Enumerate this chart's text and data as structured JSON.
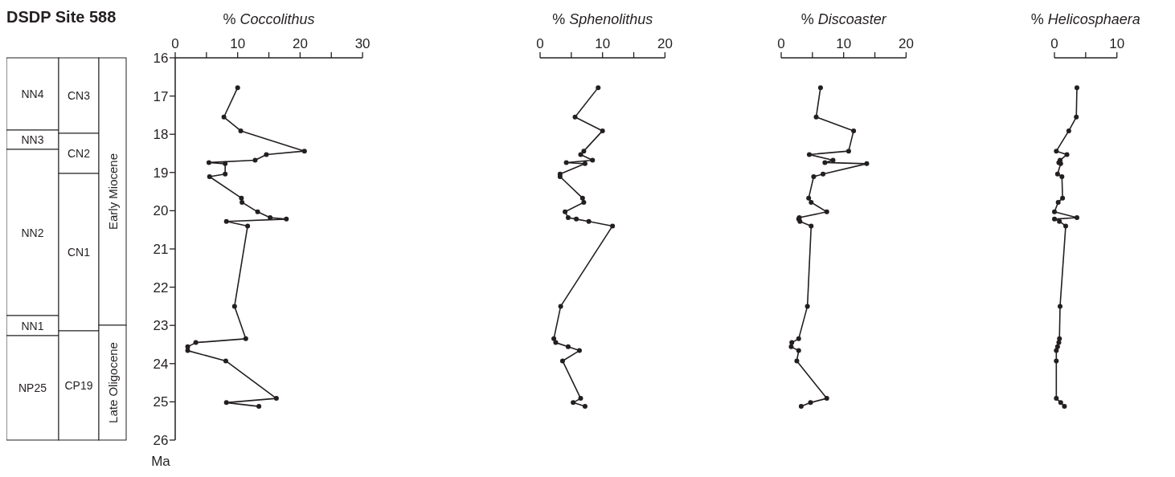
{
  "chart_data": [
    {
      "type": "other",
      "title": "DSDP Site 588",
      "annotations": [
        "NN4",
        "NN3",
        "NN2",
        "NN1",
        "NP25",
        "CN3",
        "CN2",
        "CN1",
        "CP19",
        "Early Miocene",
        "Late Oligocene"
      ]
    },
    {
      "type": "line",
      "xlabel": "% Coccolithus",
      "ylabel": "Ma",
      "xlim": [
        0,
        30
      ],
      "xticks": [
        0,
        {
          "value": 5,
          "label": null
        },
        10,
        {
          "value": 15,
          "label": null
        },
        20,
        {
          "value": 25,
          "label": null
        },
        30
      ],
      "ylim": [
        26,
        16
      ],
      "yticks": [
        16,
        17,
        18,
        19,
        20,
        21,
        22,
        23,
        24,
        25,
        26
      ],
      "marker": "circle",
      "line_style": "solid",
      "series": [
        {
          "color": "#231f20",
          "x": [
            10.0,
            7.8,
            10.5,
            20.7,
            14.6,
            12.8,
            5.4,
            8.0,
            8.0,
            5.5,
            10.6,
            10.7,
            13.2,
            15.2,
            17.8,
            8.2,
            11.6,
            9.5,
            11.3,
            3.3,
            2.0,
            2.0,
            8.1,
            16.2,
            8.2,
            13.4
          ],
          "values": [
            16.78,
            17.55,
            17.91,
            18.44,
            18.53,
            18.68,
            18.74,
            18.77,
            19.04,
            19.11,
            19.67,
            19.78,
            20.03,
            20.18,
            20.22,
            20.28,
            20.4,
            22.5,
            23.35,
            23.45,
            23.56,
            23.66,
            23.93,
            24.91,
            25.02,
            25.12
          ]
        }
      ]
    },
    {
      "type": "line",
      "xlabel": "% Sphenolithus",
      "xlim": [
        0,
        20
      ],
      "xticks": [
        0,
        {
          "value": 5,
          "label": null
        },
        10,
        {
          "value": 15,
          "label": null
        },
        20
      ],
      "ylim": [
        26,
        16
      ],
      "tick_labels": "x",
      "marker": "circle",
      "line_style": "solid",
      "series": [
        {
          "color": "#231f20",
          "x": [
            9.3,
            5.6,
            10.0,
            7.0,
            6.5,
            8.4,
            4.2,
            7.2,
            3.2,
            3.2,
            6.8,
            7.0,
            4.0,
            4.5,
            5.8,
            7.8,
            11.6,
            3.3,
            2.2,
            2.5,
            4.5,
            6.3,
            3.6,
            6.5,
            5.3,
            7.2
          ],
          "values": [
            16.78,
            17.55,
            17.91,
            18.44,
            18.53,
            18.68,
            18.74,
            18.77,
            19.04,
            19.11,
            19.67,
            19.78,
            20.03,
            20.18,
            20.22,
            20.28,
            20.4,
            22.5,
            23.35,
            23.45,
            23.56,
            23.66,
            23.93,
            24.91,
            25.02,
            25.12
          ]
        }
      ]
    },
    {
      "type": "line",
      "xlabel": "% Discoaster",
      "xlim": [
        0,
        20
      ],
      "xticks": [
        0,
        {
          "value": 5,
          "label": null
        },
        10,
        {
          "value": 15,
          "label": null
        },
        20
      ],
      "ylim": [
        26,
        16
      ],
      "tick_labels": "x",
      "marker": "circle",
      "line_style": "solid",
      "series": [
        {
          "color": "#231f20",
          "x": [
            6.3,
            5.6,
            11.6,
            10.8,
            4.5,
            8.3,
            7.0,
            13.7,
            6.7,
            5.2,
            4.4,
            4.8,
            7.3,
            2.9,
            2.8,
            3.0,
            4.8,
            4.2,
            2.8,
            1.7,
            1.6,
            2.8,
            2.5,
            7.3,
            4.7,
            3.2
          ],
          "values": [
            16.78,
            17.55,
            17.91,
            18.44,
            18.53,
            18.68,
            18.74,
            18.77,
            19.04,
            19.11,
            19.67,
            19.78,
            20.03,
            20.18,
            20.22,
            20.28,
            20.4,
            22.5,
            23.35,
            23.45,
            23.56,
            23.66,
            23.93,
            24.91,
            25.02,
            25.12
          ]
        }
      ]
    },
    {
      "type": "line",
      "xlabel": "% Helicosphaera",
      "xlim": [
        0,
        10
      ],
      "xticks": [
        0,
        {
          "value": 5,
          "label": null
        },
        10
      ],
      "ylim": [
        26,
        16
      ],
      "tick_labels": "x",
      "marker": "circle",
      "line_style": "solid",
      "series": [
        {
          "color": "#231f20",
          "x": [
            3.6,
            3.5,
            2.3,
            0.3,
            2.0,
            0.9,
            0.7,
            1.0,
            0.5,
            1.2,
            1.3,
            0.6,
            0.0,
            3.6,
            0.0,
            0.8,
            1.8,
            0.9,
            0.8,
            0.7,
            0.5,
            0.3,
            0.3,
            0.3,
            1.0,
            1.6
          ],
          "values": [
            16.78,
            17.55,
            17.91,
            18.44,
            18.53,
            18.68,
            18.74,
            18.77,
            19.04,
            19.11,
            19.67,
            19.78,
            20.03,
            20.18,
            20.22,
            20.28,
            20.4,
            22.5,
            23.35,
            23.45,
            23.56,
            23.66,
            23.93,
            24.91,
            25.02,
            25.12
          ]
        }
      ]
    }
  ]
}
